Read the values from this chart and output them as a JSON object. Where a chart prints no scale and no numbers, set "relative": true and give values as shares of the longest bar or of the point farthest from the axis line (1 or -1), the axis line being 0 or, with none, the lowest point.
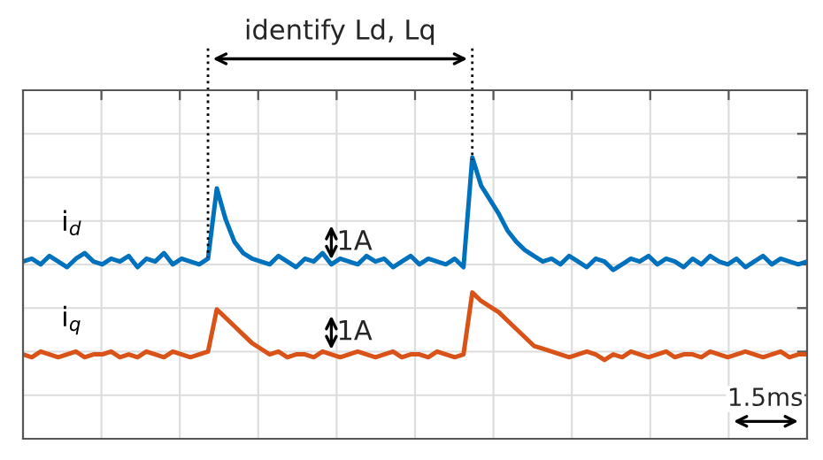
{
  "chart_data": {
    "type": "line",
    "relative": true,
    "grid": true,
    "legend": false,
    "marker": "none",
    "line_style": "solid",
    "categories": [
      null,
      null,
      null,
      null,
      null,
      null,
      null,
      null,
      null,
      null,
      null,
      null,
      null,
      null,
      null,
      null,
      null,
      null,
      null,
      null,
      null,
      null,
      null,
      null,
      null,
      null,
      null,
      null,
      null,
      null,
      null,
      null,
      null,
      null,
      null,
      null,
      null,
      null,
      null,
      null,
      null,
      null,
      null,
      null,
      null,
      null,
      null,
      null,
      null,
      null,
      null,
      null,
      null,
      null,
      null,
      null,
      null,
      null,
      null,
      null,
      null,
      null,
      null,
      null,
      null,
      null,
      null,
      null,
      null,
      null,
      null,
      null,
      null,
      null,
      null,
      null,
      null,
      null,
      null,
      null,
      null,
      null,
      null,
      null,
      null,
      null,
      null,
      null,
      null,
      null
    ],
    "series": [
      {
        "name": "i$_{d}$",
        "color": "#0072bd",
        "values": [
          0.63,
          0.64,
          0.62,
          0.65,
          0.63,
          0.61,
          0.64,
          0.66,
          0.63,
          0.62,
          0.64,
          0.63,
          0.65,
          0.61,
          0.64,
          0.63,
          0.66,
          0.62,
          0.64,
          0.63,
          0.62,
          0.64,
          0.89,
          0.78,
          0.7,
          0.66,
          0.64,
          0.63,
          0.62,
          0.65,
          0.63,
          0.61,
          0.64,
          0.63,
          0.66,
          0.62,
          0.64,
          0.63,
          0.62,
          0.65,
          0.63,
          0.64,
          0.61,
          0.63,
          0.65,
          0.62,
          0.64,
          0.63,
          0.62,
          0.64,
          0.61,
          1.0,
          0.9,
          0.85,
          0.8,
          0.74,
          0.7,
          0.67,
          0.65,
          0.63,
          0.64,
          0.62,
          0.65,
          0.63,
          0.61,
          0.64,
          0.63,
          0.6,
          0.62,
          0.64,
          0.63,
          0.65,
          0.62,
          0.64,
          0.63,
          0.61,
          0.64,
          0.62,
          0.65,
          0.63,
          0.62,
          0.64,
          0.61,
          0.63,
          0.65,
          0.62,
          0.64,
          0.63,
          0.62,
          0.63
        ]
      },
      {
        "name": "i$_{q}$",
        "color": "#d95319",
        "values": [
          0.3,
          0.29,
          0.31,
          0.3,
          0.29,
          0.3,
          0.31,
          0.29,
          0.3,
          0.3,
          0.31,
          0.29,
          0.3,
          0.29,
          0.31,
          0.3,
          0.29,
          0.31,
          0.3,
          0.29,
          0.3,
          0.31,
          0.46,
          0.43,
          0.4,
          0.37,
          0.34,
          0.32,
          0.3,
          0.31,
          0.29,
          0.3,
          0.3,
          0.29,
          0.31,
          0.3,
          0.29,
          0.3,
          0.31,
          0.3,
          0.29,
          0.3,
          0.31,
          0.29,
          0.3,
          0.3,
          0.29,
          0.31,
          0.3,
          0.29,
          0.3,
          0.52,
          0.49,
          0.47,
          0.45,
          0.42,
          0.39,
          0.36,
          0.33,
          0.32,
          0.31,
          0.3,
          0.29,
          0.3,
          0.31,
          0.3,
          0.28,
          0.3,
          0.29,
          0.31,
          0.3,
          0.29,
          0.3,
          0.31,
          0.29,
          0.3,
          0.3,
          0.29,
          0.31,
          0.3,
          0.29,
          0.3,
          0.31,
          0.3,
          0.29,
          0.3,
          0.31,
          0.29,
          0.3,
          0.3
        ]
      }
    ],
    "annotations": [
      "identify Ld, Lq",
      "1A",
      "1A",
      "1.5ms"
    ]
  }
}
